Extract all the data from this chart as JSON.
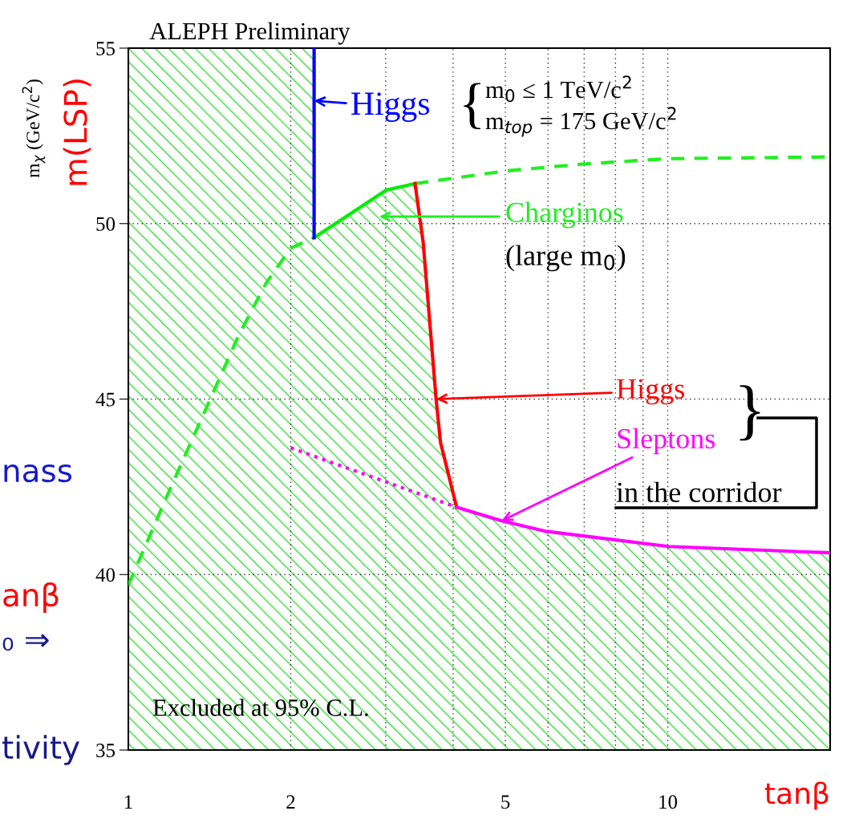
{
  "chart_data": {
    "type": "line",
    "title": "ALEPH Preliminary",
    "xlabel": "tanβ",
    "ylabel": "m(LSP)",
    "log": "x",
    "grid": true,
    "xlim": [
      1,
      20
    ],
    "xticks": [
      1,
      2,
      {
        "value": 3,
        "label": null
      },
      {
        "value": 4,
        "label": null
      },
      5,
      {
        "value": 6,
        "label": null
      },
      {
        "value": 7,
        "label": null
      },
      {
        "value": 8,
        "label": null
      },
      {
        "value": 9,
        "label": null
      },
      10
    ],
    "ylim": [
      35,
      55
    ],
    "yticks": [
      35,
      40,
      45,
      50,
      55
    ],
    "series": [
      {
        "color": "#22ee22",
        "line_style": "dashed",
        "x": [
          1,
          1.2,
          1.4,
          1.6,
          1.8,
          2,
          2.21
        ],
        "values": [
          39.7,
          42.5,
          44.8,
          46.8,
          48.3,
          49.3,
          49.6
        ]
      },
      {
        "color": "#22ee22",
        "line_style": "dashed",
        "x": [
          3.4,
          5,
          7,
          10,
          20
        ],
        "values": [
          51.14,
          51.5,
          51.7,
          51.85,
          51.9
        ]
      },
      {
        "type": "line",
        "color": "#00ee00",
        "line_style": "solid",
        "x": [
          2.21,
          3.01,
          3.4
        ],
        "values": [
          49.6,
          50.96,
          51.14
        ]
      },
      {
        "color": "#0000ff",
        "line_style": "solid",
        "x": [
          2.21,
          2.21
        ],
        "values": [
          55,
          49.6
        ]
      },
      {
        "type": "line",
        "color": "#ff0000",
        "line_style": "solid",
        "x": [
          3.4,
          3.52,
          3.72,
          3.79,
          4.06
        ],
        "values": [
          51.14,
          49.47,
          45.0,
          43.77,
          41.92
        ]
      },
      {
        "color": "#ff00ff",
        "line_style": "dotted",
        "x": [
          2,
          4.06
        ],
        "values": [
          43.61,
          41.92
        ]
      },
      {
        "type": "line",
        "color": "#ff00ff",
        "line_style": "solid",
        "x": [
          4.06,
          4.92,
          5.95,
          10.03,
          20
        ],
        "values": [
          41.92,
          41.53,
          41.23,
          40.8,
          40.62
        ]
      }
    ],
    "annotations": [
      "Excluded at 95% C.L.",
      {
        "text": "Higgs",
        "x": 2.21,
        "y": 53.5
      },
      "{",
      "m$_{0}$ ≤ 1 TeV/c$^{2}$",
      "m$_{top}$ = 175 GeV/c$^{2}$",
      "Charginos",
      "(large m$_{0}$)",
      {
        "text": "Higgs",
        "x": 3.72,
        "y": 45.0
      },
      {
        "text": "Sleptons",
        "x": 4.92,
        "y": 41.53
      },
      "}",
      "in the corridor",
      "m$_{χ}$ (GeV/c$^{2}$)",
      "nass",
      "anβ",
      "₀ ⇒",
      "tivity"
    ]
  }
}
